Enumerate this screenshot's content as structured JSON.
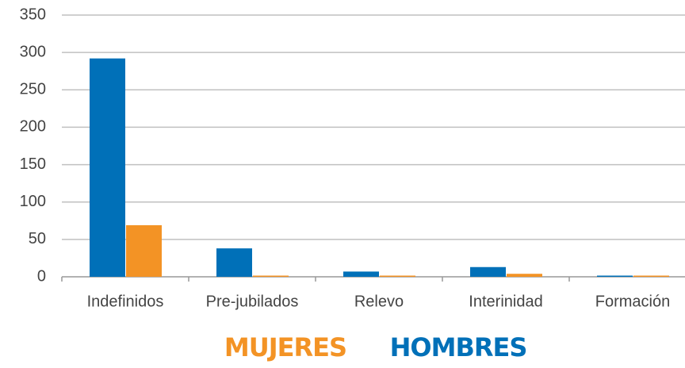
{
  "chart_data": {
    "type": "bar",
    "categories": [
      "Indefinidos",
      "Pre-jubilados",
      "Relevo",
      "Interinidad",
      "Formación"
    ],
    "series": [
      {
        "name": "HOMBRES",
        "color": "#0070b8",
        "values": [
          292,
          38,
          7,
          13,
          1
        ]
      },
      {
        "name": "MUJERES",
        "color": "#f39325",
        "values": [
          69,
          1,
          0,
          4,
          0
        ]
      }
    ],
    "ylim": [
      0,
      350
    ],
    "yticks": [
      0,
      50,
      100,
      150,
      200,
      250,
      300,
      350
    ],
    "grid": true,
    "legend": "bottom"
  }
}
